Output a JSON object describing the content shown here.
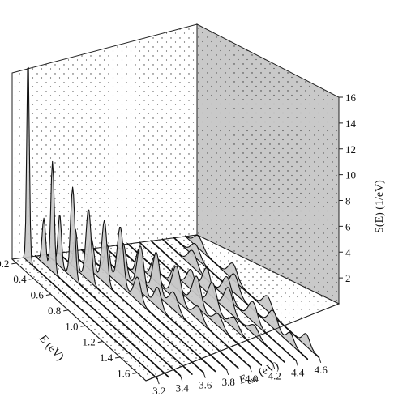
{
  "chart_data": {
    "type": "waterfall-3d",
    "title": "",
    "xlabel": {
      "main": "E",
      "rest": " (eV)"
    },
    "ylabel": {
      "main": "E",
      "sub": "exc",
      "rest": " (eV)"
    },
    "zlabel": "S(E) (1/eV)",
    "x_ticks": [
      "0.2",
      "0.4",
      "0.6",
      "0.8",
      "1.0",
      "1.2",
      "1.4",
      "1.6"
    ],
    "y_ticks": [
      "3.2",
      "3.4",
      "3.6",
      "3.8",
      "4.0",
      "4.2",
      "4.4",
      "4.6"
    ],
    "z_ticks": [
      "2",
      "4",
      "6",
      "8",
      "10",
      "12",
      "14",
      "16"
    ],
    "xlim": [
      0.15,
      1.7
    ],
    "ylim": [
      3.1,
      4.7
    ],
    "zlim": [
      0,
      16
    ],
    "series": [
      {
        "E_exc": 3.2,
        "peaks": [
          [
            0.2,
            16.0,
            0.015
          ]
        ]
      },
      {
        "E_exc": 3.3,
        "peaks": [
          [
            0.25,
            3.5,
            0.02
          ],
          [
            0.35,
            8.5,
            0.02
          ]
        ]
      },
      {
        "E_exc": 3.4,
        "peaks": [
          [
            0.3,
            4.0,
            0.02
          ],
          [
            0.45,
            7.0,
            0.025
          ]
        ]
      },
      {
        "E_exc": 3.5,
        "peaks": [
          [
            0.35,
            3.0,
            0.02
          ],
          [
            0.5,
            5.5,
            0.03
          ]
        ]
      },
      {
        "E_exc": 3.6,
        "peaks": [
          [
            0.4,
            2.5,
            0.03
          ],
          [
            0.55,
            4.8,
            0.03
          ]
        ]
      },
      {
        "E_exc": 3.7,
        "peaks": [
          [
            0.45,
            2.2,
            0.03
          ],
          [
            0.6,
            4.5,
            0.035
          ],
          [
            0.8,
            1.8,
            0.04
          ]
        ]
      },
      {
        "E_exc": 3.8,
        "peaks": [
          [
            0.5,
            2.5,
            0.035
          ],
          [
            0.7,
            3.5,
            0.04
          ],
          [
            0.9,
            1.5,
            0.04
          ]
        ]
      },
      {
        "E_exc": 3.9,
        "peaks": [
          [
            0.55,
            2.2,
            0.035
          ],
          [
            0.75,
            3.2,
            0.04
          ],
          [
            0.95,
            1.3,
            0.05
          ]
        ]
      },
      {
        "E_exc": 4.0,
        "peaks": [
          [
            0.6,
            1.8,
            0.04
          ],
          [
            0.85,
            2.6,
            0.05
          ],
          [
            1.1,
            1.0,
            0.05
          ]
        ]
      },
      {
        "E_exc": 4.1,
        "peaks": [
          [
            0.7,
            1.6,
            0.04
          ],
          [
            0.95,
            2.3,
            0.05
          ],
          [
            1.2,
            0.9,
            0.05
          ]
        ]
      },
      {
        "E_exc": 4.2,
        "peaks": [
          [
            0.75,
            1.5,
            0.045
          ],
          [
            1.0,
            2.0,
            0.05
          ],
          [
            1.25,
            0.8,
            0.05
          ]
        ]
      },
      {
        "E_exc": 4.3,
        "peaks": [
          [
            0.8,
            1.8,
            0.045
          ],
          [
            1.05,
            1.8,
            0.05
          ],
          [
            1.35,
            0.7,
            0.05
          ]
        ]
      },
      {
        "E_exc": 4.4,
        "peaks": [
          [
            0.5,
            1.2,
            0.05
          ],
          [
            0.9,
            1.6,
            0.05
          ],
          [
            1.2,
            1.5,
            0.05
          ]
        ]
      },
      {
        "E_exc": 4.5,
        "peaks": [
          [
            0.4,
            1.0,
            0.05
          ],
          [
            0.85,
            1.4,
            0.05
          ],
          [
            1.3,
            1.3,
            0.05
          ],
          [
            1.5,
            0.8,
            0.04
          ]
        ]
      },
      {
        "E_exc": 4.6,
        "peaks": [
          [
            0.3,
            0.9,
            0.05
          ],
          [
            0.7,
            1.2,
            0.05
          ],
          [
            1.1,
            1.1,
            0.05
          ],
          [
            1.55,
            0.9,
            0.04
          ]
        ]
      }
    ],
    "grid": false,
    "legend": "none"
  }
}
